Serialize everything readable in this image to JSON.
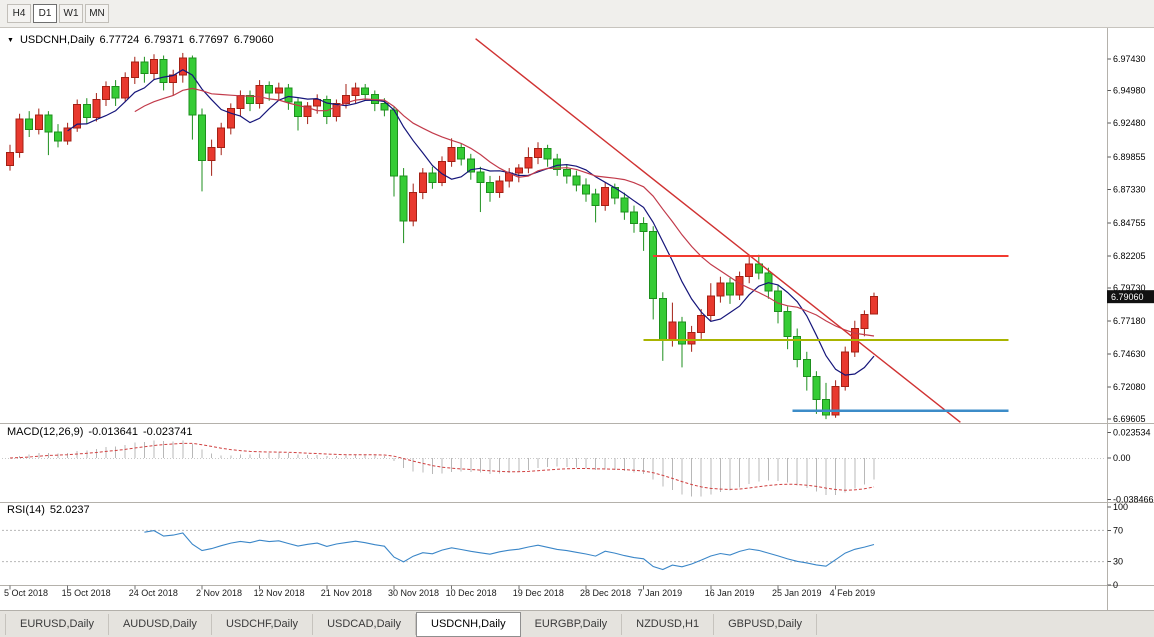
{
  "toolbar": {
    "timeframes": [
      {
        "label": "H4",
        "active": false
      },
      {
        "label": "D1",
        "active": true
      },
      {
        "label": "W1",
        "active": false
      },
      {
        "label": "MN",
        "active": false
      }
    ]
  },
  "chart": {
    "symbol_line": {
      "symbol": "USDCNH,Daily",
      "open": "6.77724",
      "high": "6.79371",
      "low": "6.77697",
      "close": "6.79060"
    },
    "current_price": "6.79060",
    "price_axis": [
      "6.97430",
      "6.94980",
      "6.92480",
      "6.89855",
      "6.87330",
      "6.84755",
      "6.82205",
      "6.79730",
      "6.77180",
      "6.74630",
      "6.72080",
      "6.69605"
    ],
    "macd_label": {
      "name": "MACD(12,26,9)",
      "main": "-0.013641",
      "signal": "-0.023741"
    },
    "macd_axis": [
      "0.023534",
      "0.00",
      "-0.038466"
    ],
    "rsi_label": {
      "name": "RSI(14)",
      "value": "52.0237"
    },
    "rsi_axis": [
      "100",
      "70",
      "30",
      "0"
    ]
  },
  "chart_data": {
    "type": "candlestick",
    "title": "USDCNH Daily",
    "symbol": "USDCNH",
    "timeframe": "Daily",
    "ylim": [
      6.688,
      6.995
    ],
    "grid": false,
    "ohlc": [
      [
        6.892,
        6.908,
        6.888,
        6.902
      ],
      [
        6.902,
        6.932,
        6.898,
        6.928
      ],
      [
        6.928,
        6.934,
        6.914,
        6.92
      ],
      [
        6.92,
        6.936,
        6.916,
        6.931
      ],
      [
        6.931,
        6.934,
        6.9,
        6.918
      ],
      [
        6.918,
        6.924,
        6.906,
        6.911
      ],
      [
        6.911,
        6.925,
        6.908,
        6.921
      ],
      [
        6.921,
        6.943,
        6.918,
        6.939
      ],
      [
        6.939,
        6.944,
        6.924,
        6.929
      ],
      [
        6.929,
        6.948,
        6.926,
        6.943
      ],
      [
        6.943,
        6.957,
        6.938,
        6.953
      ],
      [
        6.953,
        6.958,
        6.938,
        6.944
      ],
      [
        6.944,
        6.964,
        6.941,
        6.96
      ],
      [
        6.96,
        6.976,
        6.955,
        6.972
      ],
      [
        6.972,
        6.976,
        6.956,
        6.963
      ],
      [
        6.963,
        6.978,
        6.958,
        6.974
      ],
      [
        6.974,
        6.977,
        6.95,
        6.956
      ],
      [
        6.956,
        6.966,
        6.946,
        6.962
      ],
      [
        6.962,
        6.979,
        6.956,
        6.975
      ],
      [
        6.975,
        6.977,
        6.912,
        6.931
      ],
      [
        6.931,
        6.936,
        6.872,
        6.896
      ],
      [
        6.896,
        6.912,
        6.884,
        6.906
      ],
      [
        6.906,
        6.925,
        6.9,
        6.921
      ],
      [
        6.921,
        6.94,
        6.916,
        6.936
      ],
      [
        6.936,
        6.95,
        6.93,
        6.946
      ],
      [
        6.946,
        6.95,
        6.934,
        6.94
      ],
      [
        6.94,
        6.958,
        6.936,
        6.954
      ],
      [
        6.954,
        6.957,
        6.942,
        6.948
      ],
      [
        6.948,
        6.956,
        6.942,
        6.952
      ],
      [
        6.952,
        6.955,
        6.935,
        6.941
      ],
      [
        6.941,
        6.944,
        6.919,
        6.93
      ],
      [
        6.93,
        6.941,
        6.924,
        6.938
      ],
      [
        6.938,
        6.947,
        6.932,
        6.943
      ],
      [
        6.943,
        6.946,
        6.924,
        6.93
      ],
      [
        6.93,
        6.943,
        6.926,
        6.94
      ],
      [
        6.94,
        6.955,
        6.936,
        6.946
      ],
      [
        6.946,
        6.956,
        6.94,
        6.952
      ],
      [
        6.952,
        6.955,
        6.942,
        6.947
      ],
      [
        6.947,
        6.95,
        6.934,
        6.94
      ],
      [
        6.94,
        6.944,
        6.93,
        6.935
      ],
      [
        6.935,
        6.938,
        6.868,
        6.884
      ],
      [
        6.884,
        6.89,
        6.832,
        6.849
      ],
      [
        6.849,
        6.878,
        6.845,
        6.871
      ],
      [
        6.871,
        6.89,
        6.866,
        6.886
      ],
      [
        6.886,
        6.891,
        6.874,
        6.879
      ],
      [
        6.879,
        6.899,
        6.876,
        6.895
      ],
      [
        6.895,
        6.913,
        6.891,
        6.906
      ],
      [
        6.906,
        6.909,
        6.892,
        6.897
      ],
      [
        6.897,
        6.901,
        6.881,
        6.887
      ],
      [
        6.887,
        6.891,
        6.856,
        6.879
      ],
      [
        6.879,
        6.884,
        6.864,
        6.871
      ],
      [
        6.871,
        6.884,
        6.867,
        6.88
      ],
      [
        6.88,
        6.89,
        6.875,
        6.886
      ],
      [
        6.886,
        6.893,
        6.879,
        6.89
      ],
      [
        6.89,
        6.906,
        6.886,
        6.898
      ],
      [
        6.898,
        6.91,
        6.893,
        6.905
      ],
      [
        6.905,
        6.908,
        6.891,
        6.897
      ],
      [
        6.897,
        6.901,
        6.884,
        6.889
      ],
      [
        6.889,
        6.893,
        6.878,
        6.884
      ],
      [
        6.884,
        6.888,
        6.872,
        6.877
      ],
      [
        6.877,
        6.882,
        6.864,
        6.87
      ],
      [
        6.87,
        6.874,
        6.848,
        6.861
      ],
      [
        6.861,
        6.879,
        6.857,
        6.875
      ],
      [
        6.875,
        6.878,
        6.862,
        6.867
      ],
      [
        6.867,
        6.871,
        6.85,
        6.856
      ],
      [
        6.856,
        6.861,
        6.84,
        6.847
      ],
      [
        6.847,
        6.852,
        6.826,
        6.841
      ],
      [
        6.841,
        6.845,
        6.773,
        6.789
      ],
      [
        6.789,
        6.794,
        6.741,
        6.757
      ],
      [
        6.757,
        6.786,
        6.752,
        6.771
      ],
      [
        6.771,
        6.775,
        6.736,
        6.754
      ],
      [
        6.754,
        6.768,
        6.748,
        6.763
      ],
      [
        6.763,
        6.781,
        6.758,
        6.776
      ],
      [
        6.776,
        6.801,
        6.772,
        6.791
      ],
      [
        6.791,
        6.806,
        6.786,
        6.801
      ],
      [
        6.801,
        6.805,
        6.785,
        6.792
      ],
      [
        6.792,
        6.81,
        6.788,
        6.806
      ],
      [
        6.806,
        6.822,
        6.801,
        6.816
      ],
      [
        6.816,
        6.823,
        6.804,
        6.809
      ],
      [
        6.809,
        6.813,
        6.789,
        6.795
      ],
      [
        6.795,
        6.8,
        6.77,
        6.779
      ],
      [
        6.779,
        6.783,
        6.75,
        6.76
      ],
      [
        6.76,
        6.766,
        6.736,
        6.742
      ],
      [
        6.742,
        6.748,
        6.718,
        6.729
      ],
      [
        6.729,
        6.733,
        6.7,
        6.711
      ],
      [
        6.711,
        6.724,
        6.696,
        6.699
      ],
      [
        6.699,
        6.726,
        6.697,
        6.721
      ],
      [
        6.721,
        6.752,
        6.718,
        6.748
      ],
      [
        6.748,
        6.772,
        6.744,
        6.766
      ],
      [
        6.766,
        6.78,
        6.76,
        6.777
      ],
      [
        6.77724,
        6.79371,
        6.77697,
        6.7906
      ]
    ],
    "date_ticks": [
      {
        "i": 0,
        "label": "5 Oct 2018"
      },
      {
        "i": 6,
        "label": "15 Oct 2018"
      },
      {
        "i": 13,
        "label": "24 Oct 2018"
      },
      {
        "i": 20,
        "label": "2 Nov 2018"
      },
      {
        "i": 26,
        "label": "12 Nov 2018"
      },
      {
        "i": 33,
        "label": "21 Nov 2018"
      },
      {
        "i": 40,
        "label": "30 Nov 2018"
      },
      {
        "i": 46,
        "label": "10 Dec 2018"
      },
      {
        "i": 53,
        "label": "19 Dec 2018"
      },
      {
        "i": 60,
        "label": "28 Dec 2018"
      },
      {
        "i": 66,
        "label": "7 Jan 2019"
      },
      {
        "i": 73,
        "label": "16 Jan 2019"
      },
      {
        "i": 80,
        "label": "25 Jan 2019"
      },
      {
        "i": 86,
        "label": "4 Feb 2019"
      }
    ],
    "overlays": {
      "ma_fast": {
        "period": 7,
        "color": "#15157a"
      },
      "ma_slow": {
        "period": 14,
        "color": "#c23b4b"
      },
      "trendline": {
        "from_i": 48.5,
        "from_price": 6.99,
        "to_i": 99,
        "to_price": 6.6935,
        "color": "#d03232",
        "width": 1.4
      },
      "hlines": [
        {
          "price": 6.82205,
          "from": 67,
          "to": 104,
          "color": "#f23b30",
          "width": 2
        },
        {
          "price": 6.757,
          "from": 66,
          "to": 104,
          "color": "#a9b400",
          "width": 2
        },
        {
          "price": 6.7025,
          "from": 81.5,
          "to": 104,
          "color": "#3c8cc8",
          "width": 2.5
        }
      ]
    },
    "indicators": {
      "macd": {
        "fast": 12,
        "slow": 26,
        "signal": 9,
        "main_value": -0.013641,
        "signal_value": -0.023741,
        "range": [
          -0.0405,
          0.031
        ]
      },
      "rsi": {
        "period": 14,
        "value": 52.0237,
        "levels": [
          70,
          30
        ],
        "range": [
          0,
          100
        ]
      }
    },
    "colors": {
      "bull": "#e8392e",
      "bull_border": "#a32014",
      "bear": "#35cc35",
      "bear_border": "#1d8f1d",
      "hist": "#b8b8b8",
      "macd_signal": "#d04040",
      "rsi": "#3a86c8",
      "axis_text": "#000000",
      "badge_bg": "#111111",
      "badge_text": "#ffffff"
    }
  },
  "tabs": [
    {
      "label": "EURUSD,Daily",
      "active": false
    },
    {
      "label": "AUDUSD,Daily",
      "active": false
    },
    {
      "label": "USDCHF,Daily",
      "active": false
    },
    {
      "label": "USDCAD,Daily",
      "active": false
    },
    {
      "label": "USDCNH,Daily",
      "active": true
    },
    {
      "label": "EURGBP,Daily",
      "active": false
    },
    {
      "label": "NZDUSD,H1",
      "active": false
    },
    {
      "label": "GBPUSD,Daily",
      "active": false
    }
  ]
}
